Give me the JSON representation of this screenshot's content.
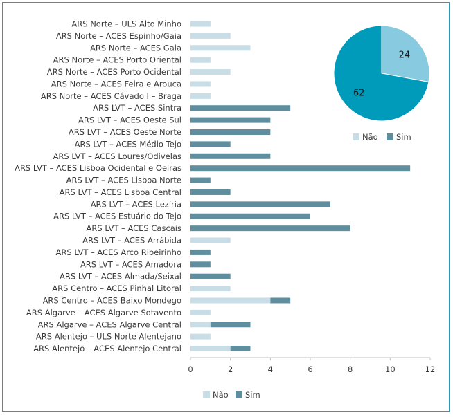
{
  "chart_data": [
    {
      "type": "bar",
      "stacked": true,
      "orientation": "horizontal",
      "categories": [
        "ARS Norte – ULS Alto Minho",
        "ARS Norte – ACES Espinho/Gaia",
        "ARS Norte – ACES Gaia",
        "ARS Norte – ACES Porto Oriental",
        "ARS Norte – ACES Porto Ocidental",
        "ARS Norte – ACES Feira e Arouca",
        "ARS Norte – ACES Cávado I – Braga",
        "ARS LVT – ACES Sintra",
        "ARS LVT – ACES Oeste Sul",
        "ARS LVT – ACES Oeste Norte",
        "ARS LVT – ACES Médio Tejo",
        "ARS LVT – ACES Loures/Odivelas",
        "ARS LVT – ACES Lisboa Ocidental e Oeiras",
        "ARS LVT – ACES Lisboa Norte",
        "ARS LVT – ACES Lisboa Central",
        "ARS LVT – ACES Lezíria",
        "ARS LVT – ACES Estuário do Tejo",
        "ARS LVT – ACES Cascais",
        "ARS LVT – ACES Arrábida",
        "ARS LVT – ACES Arco Ribeirinho",
        "ARS LVT – ACES Amadora",
        "ARS LVT – ACES Almada/Seixal",
        "ARS Centro – ACES Pinhal Litoral",
        "ARS Centro – ACES Baixo Mondego",
        "ARS Algarve – ACES Algarve Sotavento",
        "ARS Algarve – ACES Algarve Central",
        "ARS Alentejo – ULS Norte Alentejano",
        "ARS Alentejo – ACES Alentejo Central"
      ],
      "series": [
        {
          "name": "Não",
          "color": "#c8dde5",
          "values": [
            1,
            2,
            3,
            1,
            2,
            1,
            1,
            0,
            0,
            0,
            0,
            0,
            0,
            0,
            0,
            0,
            0,
            0,
            2,
            0,
            0,
            0,
            2,
            4,
            1,
            1,
            1,
            2
          ]
        },
        {
          "name": "Sim",
          "color": "#5f8f9e",
          "values": [
            0,
            0,
            0,
            0,
            0,
            0,
            0,
            5,
            4,
            4,
            2,
            4,
            11,
            1,
            2,
            7,
            6,
            8,
            0,
            1,
            1,
            2,
            0,
            1,
            0,
            2,
            0,
            1
          ]
        }
      ],
      "xlim": [
        0,
        12
      ],
      "xticks": [
        "0",
        "2",
        "4",
        "6",
        "8",
        "10",
        "12"
      ],
      "legend": [
        "Não",
        "Sim"
      ]
    },
    {
      "type": "pie",
      "slices": [
        {
          "name": "Não",
          "value": 24,
          "label": "24",
          "color": "#88cadf"
        },
        {
          "name": "Sim",
          "value": 62,
          "label": "62",
          "color": "#009bbb"
        }
      ],
      "legend": [
        "Não",
        "Sim"
      ],
      "legend_colors": [
        "#c8dde5",
        "#5f8f9e"
      ]
    }
  ]
}
